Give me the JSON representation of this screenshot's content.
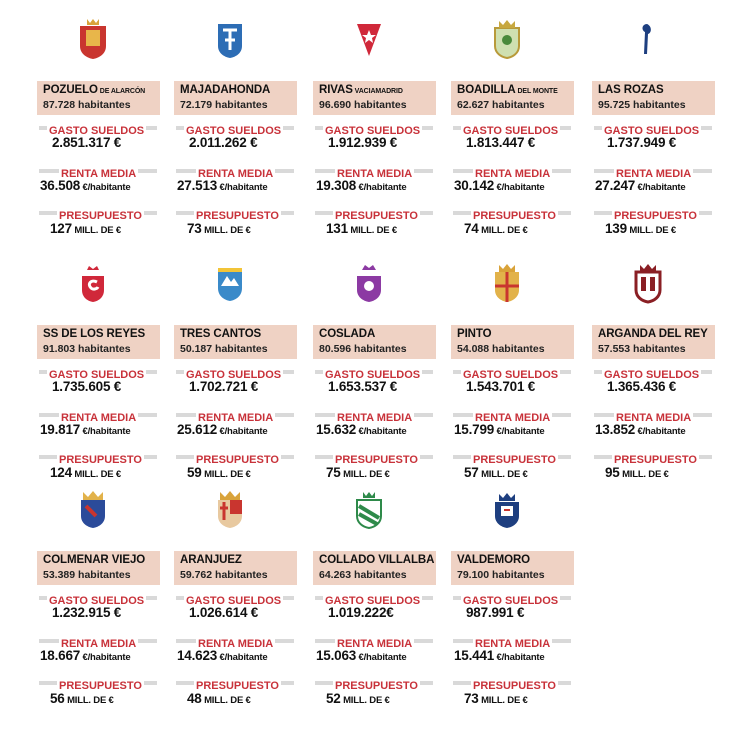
{
  "labels": {
    "gasto": "GASTO SUELDOS",
    "renta": "RENTA MEDIA",
    "presupuesto": "PRESUPUESTO"
  },
  "cities": [
    {
      "name": "POZUELO",
      "suffix": " DE ALARCÓN",
      "hab": "87.728 habitantes",
      "gasto": "2.851.317 €",
      "renta": "36.508",
      "renta_unit": " €/habitante",
      "pres": "127",
      "pres_unit": " MILL. DE €",
      "crest": "pozuelo-crest"
    },
    {
      "name": "MAJADAHONDA",
      "suffix": "",
      "hab": "72.179 habitantes",
      "gasto": "2.011.262 €",
      "renta": "27.513",
      "renta_unit": " €/habitante",
      "pres": "73",
      "pres_unit": " MILL. DE €",
      "crest": "majadahonda-crest"
    },
    {
      "name": "RIVAS",
      "suffix": " VACIAMADRID",
      "hab": "96.690 habitantes",
      "gasto": "1.912.939 €",
      "renta": "19.308",
      "renta_unit": " €/habitante",
      "pres": "131",
      "pres_unit": " MILL. DE €",
      "crest": "rivas-crest"
    },
    {
      "name": "BOADILLA",
      "suffix": " DEL MONTE",
      "hab": "62.627 habitantes",
      "gasto": "1.813.447 €",
      "renta": "30.142",
      "renta_unit": " €/habitante",
      "pres": "74",
      "pres_unit": " MILL. DE €",
      "crest": "boadilla-crest"
    },
    {
      "name": "LAS ROZAS",
      "suffix": "",
      "hab": "95.725 habitantes",
      "gasto": "1.737.949 €",
      "renta": "27.247",
      "renta_unit": " €/habitante",
      "pres": "139",
      "pres_unit": " MILL. DE €",
      "crest": "las-rozas-crest"
    },
    {
      "name": "SS DE LOS REYES",
      "suffix": "",
      "hab": "91.803 habitantes",
      "gasto": "1.735.605 €",
      "renta": "19.817",
      "renta_unit": " €/habitante",
      "pres": "124",
      "pres_unit": " MILL. DE €",
      "crest": "ss-reyes-crest"
    },
    {
      "name": "TRES CANTOS",
      "suffix": "",
      "hab": "50.187 habitantes",
      "gasto": "1.702.721 €",
      "renta": "25.612",
      "renta_unit": " €/habitante",
      "pres": "59",
      "pres_unit": " MILL. DE €",
      "crest": "tres-cantos-crest"
    },
    {
      "name": "COSLADA",
      "suffix": "",
      "hab": "80.596 habitantes",
      "gasto": "1.653.537 €",
      "renta": "15.632",
      "renta_unit": " €/habitante",
      "pres": "75",
      "pres_unit": " MILL. DE €",
      "crest": "coslada-crest"
    },
    {
      "name": "PINTO",
      "suffix": "",
      "hab": "54.088 habitantes",
      "gasto": "1.543.701 €",
      "renta": "15.799",
      "renta_unit": " €/habitante",
      "pres": "57",
      "pres_unit": " MILL. DE €",
      "crest": "pinto-crest"
    },
    {
      "name": "ARGANDA DEL REY",
      "suffix": "",
      "hab": "57.553 habitantes",
      "gasto": "1.365.436 €",
      "renta": "13.852",
      "renta_unit": " €/habitante",
      "pres": "95",
      "pres_unit": " MILL. DE €",
      "crest": "arganda-crest"
    },
    {
      "name": "COLMENAR VIEJO",
      "suffix": "",
      "hab": "53.389 habitantes",
      "gasto": "1.232.915 €",
      "renta": "18.667",
      "renta_unit": " €/habitante",
      "pres": "56",
      "pres_unit": " MILL. DE €",
      "crest": "colmenar-crest"
    },
    {
      "name": "ARANJUEZ",
      "suffix": "",
      "hab": "59.762 habitantes",
      "gasto": "1.026.614 €",
      "renta": "14.623",
      "renta_unit": " €/habitante",
      "pres": "48",
      "pres_unit": " MILL. DE €",
      "crest": "aranjuez-crest"
    },
    {
      "name": "COLLADO VILLALBA",
      "suffix": "",
      "hab": "64.263 habitantes",
      "gasto": "1.019.222€",
      "renta": "15.063",
      "renta_unit": " €/habitante",
      "pres": "52",
      "pres_unit": " MILL. DE €",
      "crest": "collado-crest"
    },
    {
      "name": "VALDEMORO",
      "suffix": "",
      "hab": "79.100 habitantes",
      "gasto": "987.991 €",
      "renta": "15.441",
      "renta_unit": " €/habitante",
      "pres": "73",
      "pres_unit": " MILL. DE €",
      "crest": "valdemoro-crest"
    }
  ],
  "colors": {
    "label_red": "#c8323a",
    "name_bg": "#efd2c4",
    "bar_gray": "#d9d9d9"
  }
}
